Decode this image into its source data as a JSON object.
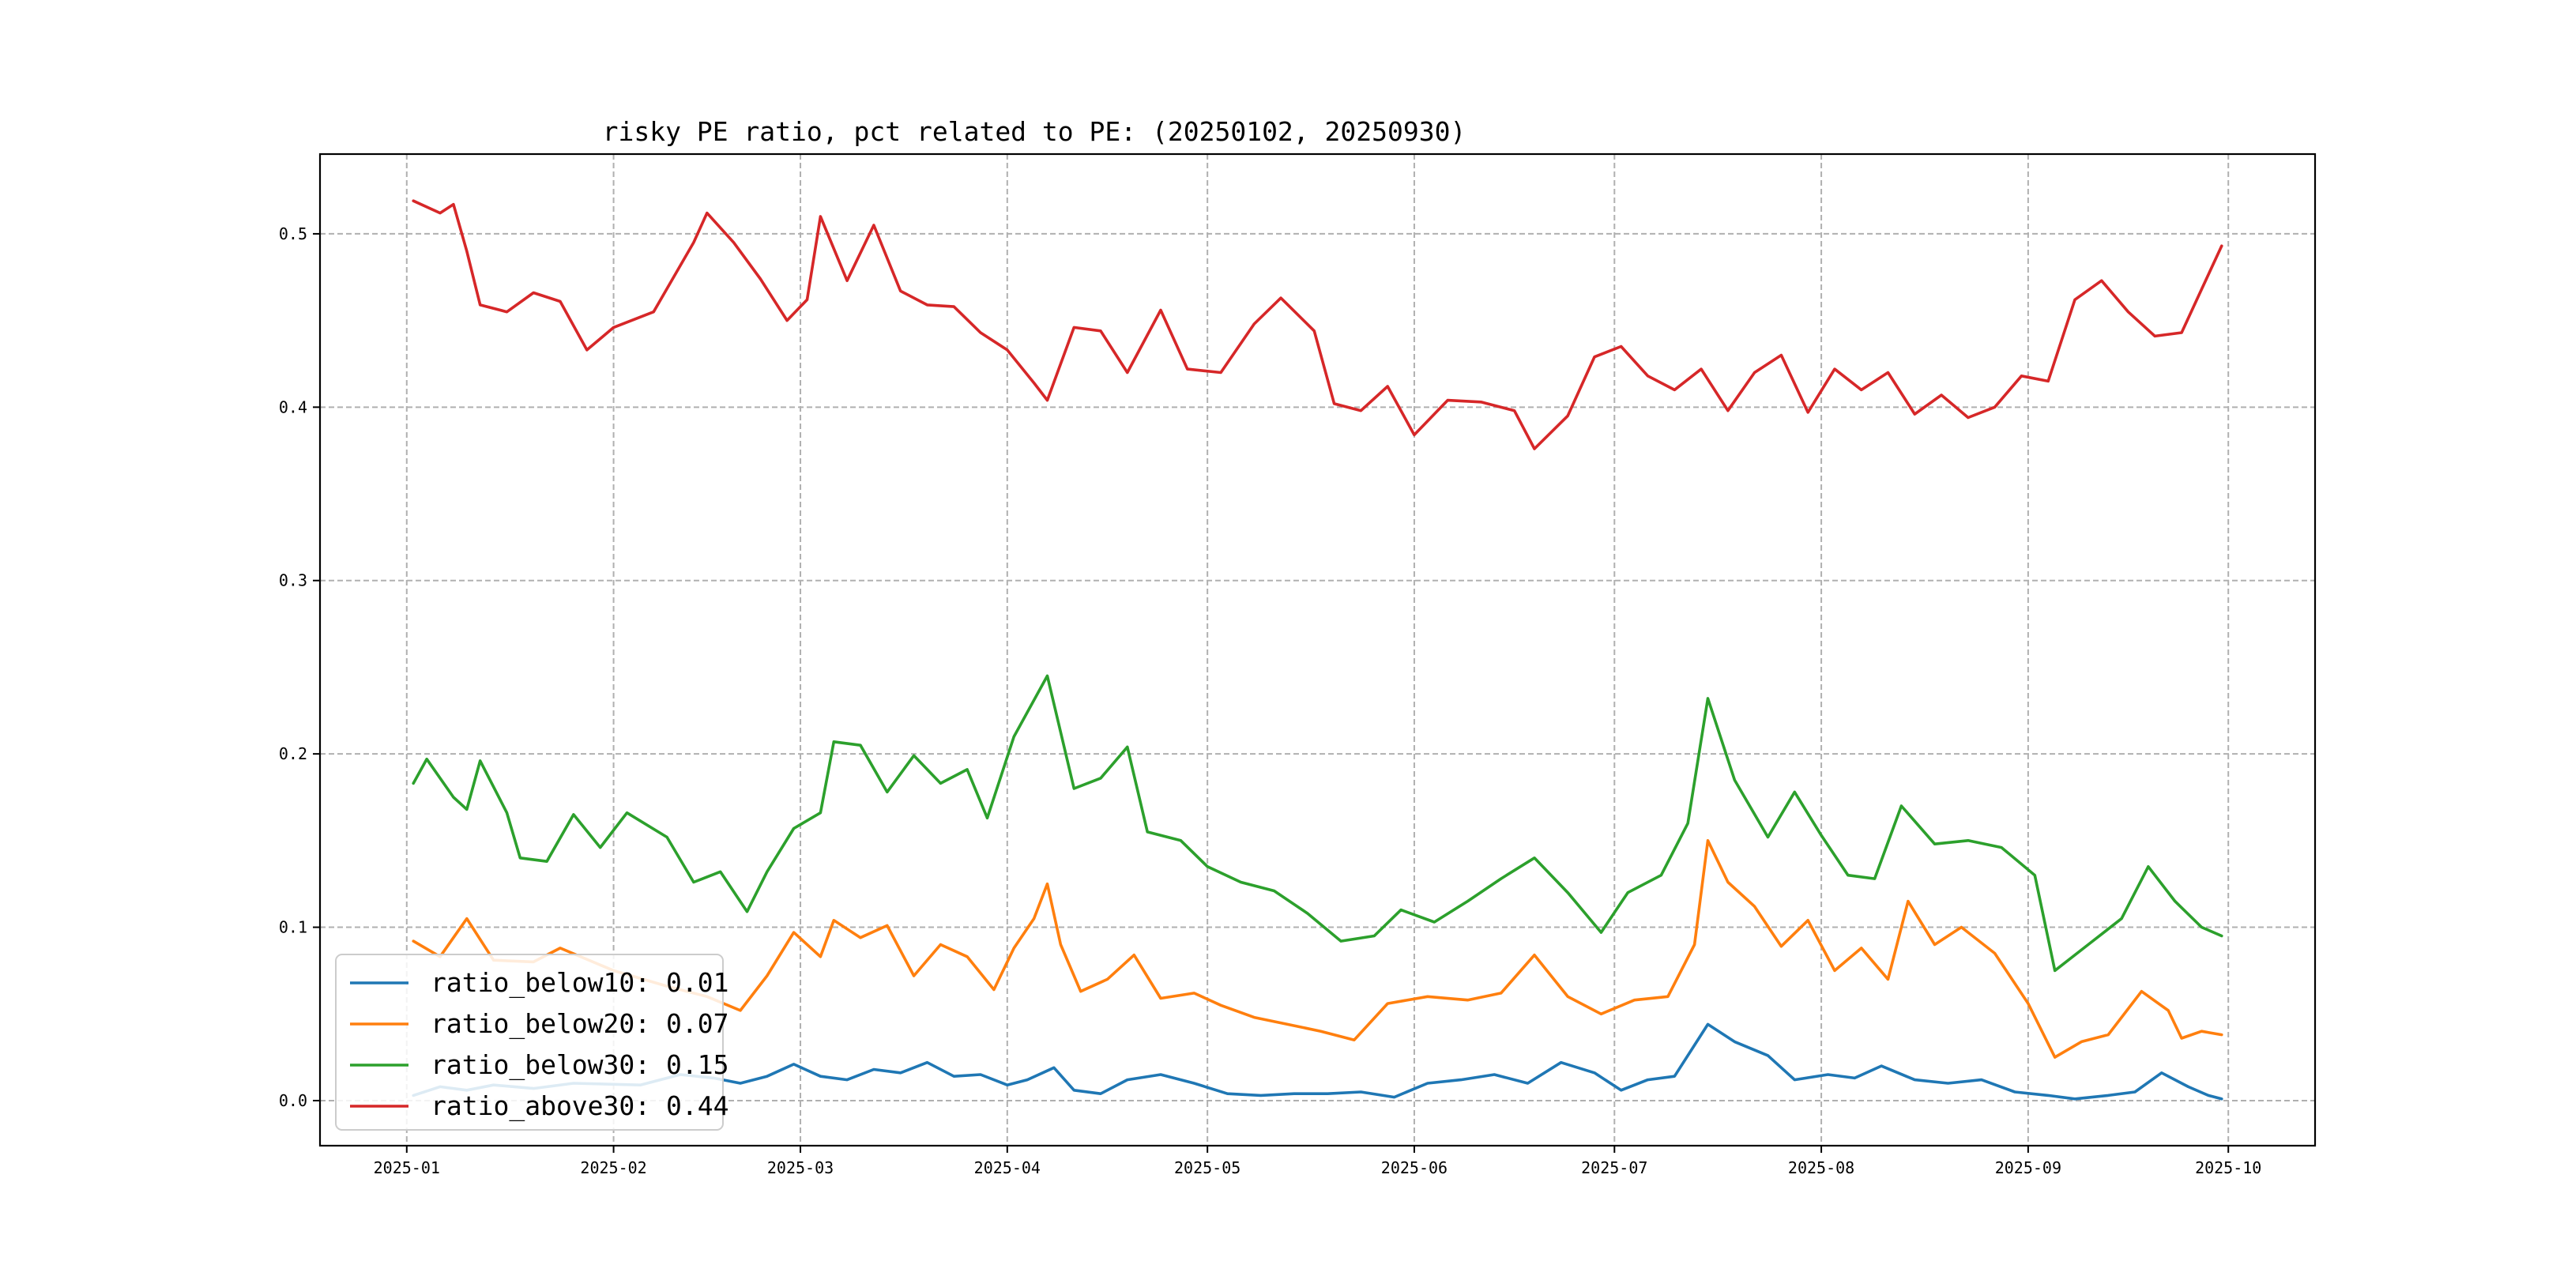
{
  "chart_data": {
    "type": "line",
    "title": "risky PE ratio, pct related to PE: (20250102, 20250930)",
    "xlabel": "",
    "ylabel": "",
    "x_tick_labels": [
      "2025-01",
      "2025-02",
      "2025-03",
      "2025-04",
      "2025-05",
      "2025-06",
      "2025-07",
      "2025-08",
      "2025-09",
      "2025-10"
    ],
    "x_ticks": [
      "2025-01-01",
      "2025-02-01",
      "2025-03-01",
      "2025-04-01",
      "2025-05-01",
      "2025-06-01",
      "2025-07-01",
      "2025-08-01",
      "2025-09-01",
      "2025-10-01"
    ],
    "xlim": [
      "2024-12-19",
      "2025-10-14"
    ],
    "y_tick_labels": [
      "0.0",
      "0.1",
      "0.2",
      "0.3",
      "0.4",
      "0.5"
    ],
    "y_ticks": [
      0.0,
      0.1,
      0.2,
      0.3,
      0.4,
      0.5
    ],
    "ylim": [
      -0.026,
      0.546
    ],
    "grid": true,
    "legend_position": "lower-left",
    "series": [
      {
        "name": "ratio_below10: 0.01",
        "color": "#1f77b4",
        "points": [
          [
            "2025-01-02",
            0.003
          ],
          [
            "2025-01-06",
            0.008
          ],
          [
            "2025-01-10",
            0.006
          ],
          [
            "2025-01-14",
            0.009
          ],
          [
            "2025-01-20",
            0.007
          ],
          [
            "2025-01-26",
            0.01
          ],
          [
            "2025-02-05",
            0.009
          ],
          [
            "2025-02-11",
            0.015
          ],
          [
            "2025-02-16",
            0.013
          ],
          [
            "2025-02-20",
            0.01
          ],
          [
            "2025-02-24",
            0.014
          ],
          [
            "2025-02-28",
            0.021
          ],
          [
            "2025-03-04",
            0.014
          ],
          [
            "2025-03-08",
            0.012
          ],
          [
            "2025-03-12",
            0.018
          ],
          [
            "2025-03-16",
            0.016
          ],
          [
            "2025-03-20",
            0.022
          ],
          [
            "2025-03-24",
            0.014
          ],
          [
            "2025-03-28",
            0.015
          ],
          [
            "2025-04-01",
            0.009
          ],
          [
            "2025-04-04",
            0.012
          ],
          [
            "2025-04-08",
            0.019
          ],
          [
            "2025-04-11",
            0.006
          ],
          [
            "2025-04-15",
            0.004
          ],
          [
            "2025-04-19",
            0.012
          ],
          [
            "2025-04-24",
            0.015
          ],
          [
            "2025-04-29",
            0.01
          ],
          [
            "2025-05-04",
            0.004
          ],
          [
            "2025-05-09",
            0.003
          ],
          [
            "2025-05-14",
            0.004
          ],
          [
            "2025-05-19",
            0.004
          ],
          [
            "2025-05-24",
            0.005
          ],
          [
            "2025-05-29",
            0.002
          ],
          [
            "2025-06-03",
            0.01
          ],
          [
            "2025-06-08",
            0.012
          ],
          [
            "2025-06-13",
            0.015
          ],
          [
            "2025-06-18",
            0.01
          ],
          [
            "2025-06-23",
            0.022
          ],
          [
            "2025-06-28",
            0.016
          ],
          [
            "2025-07-02",
            0.006
          ],
          [
            "2025-07-06",
            0.012
          ],
          [
            "2025-07-10",
            0.014
          ],
          [
            "2025-07-15",
            0.044
          ],
          [
            "2025-07-19",
            0.034
          ],
          [
            "2025-07-24",
            0.026
          ],
          [
            "2025-07-28",
            0.012
          ],
          [
            "2025-08-02",
            0.015
          ],
          [
            "2025-08-06",
            0.013
          ],
          [
            "2025-08-10",
            0.02
          ],
          [
            "2025-08-15",
            0.012
          ],
          [
            "2025-08-20",
            0.01
          ],
          [
            "2025-08-25",
            0.012
          ],
          [
            "2025-08-30",
            0.005
          ],
          [
            "2025-09-04",
            0.003
          ],
          [
            "2025-09-08",
            0.001
          ],
          [
            "2025-09-13",
            0.003
          ],
          [
            "2025-09-17",
            0.005
          ],
          [
            "2025-09-21",
            0.016
          ],
          [
            "2025-09-25",
            0.008
          ],
          [
            "2025-09-28",
            0.003
          ],
          [
            "2025-09-30",
            0.001
          ]
        ]
      },
      {
        "name": "ratio_below20: 0.07",
        "color": "#ff7f0e",
        "points": [
          [
            "2025-01-02",
            0.092
          ],
          [
            "2025-01-06",
            0.083
          ],
          [
            "2025-01-08",
            0.094
          ],
          [
            "2025-01-10",
            0.105
          ],
          [
            "2025-01-14",
            0.081
          ],
          [
            "2025-01-20",
            0.08
          ],
          [
            "2025-01-24",
            0.088
          ],
          [
            "2025-02-01",
            0.075
          ],
          [
            "2025-02-09",
            0.066
          ],
          [
            "2025-02-15",
            0.06
          ],
          [
            "2025-02-20",
            0.052
          ],
          [
            "2025-02-24",
            0.072
          ],
          [
            "2025-02-28",
            0.097
          ],
          [
            "2025-03-04",
            0.083
          ],
          [
            "2025-03-06",
            0.104
          ],
          [
            "2025-03-10",
            0.094
          ],
          [
            "2025-03-14",
            0.101
          ],
          [
            "2025-03-18",
            0.072
          ],
          [
            "2025-03-22",
            0.09
          ],
          [
            "2025-03-26",
            0.083
          ],
          [
            "2025-03-30",
            0.064
          ],
          [
            "2025-04-02",
            0.088
          ],
          [
            "2025-04-05",
            0.105
          ],
          [
            "2025-04-07",
            0.125
          ],
          [
            "2025-04-09",
            0.09
          ],
          [
            "2025-04-12",
            0.063
          ],
          [
            "2025-04-16",
            0.07
          ],
          [
            "2025-04-20",
            0.084
          ],
          [
            "2025-04-24",
            0.059
          ],
          [
            "2025-04-29",
            0.062
          ],
          [
            "2025-05-03",
            0.055
          ],
          [
            "2025-05-08",
            0.048
          ],
          [
            "2025-05-13",
            0.044
          ],
          [
            "2025-05-18",
            0.04
          ],
          [
            "2025-05-23",
            0.035
          ],
          [
            "2025-05-28",
            0.056
          ],
          [
            "2025-06-03",
            0.06
          ],
          [
            "2025-06-09",
            0.058
          ],
          [
            "2025-06-14",
            0.062
          ],
          [
            "2025-06-19",
            0.084
          ],
          [
            "2025-06-24",
            0.06
          ],
          [
            "2025-06-29",
            0.05
          ],
          [
            "2025-07-04",
            0.058
          ],
          [
            "2025-07-09",
            0.06
          ],
          [
            "2025-07-13",
            0.09
          ],
          [
            "2025-07-15",
            0.15
          ],
          [
            "2025-07-18",
            0.126
          ],
          [
            "2025-07-22",
            0.112
          ],
          [
            "2025-07-26",
            0.089
          ],
          [
            "2025-07-30",
            0.104
          ],
          [
            "2025-08-03",
            0.075
          ],
          [
            "2025-08-07",
            0.088
          ],
          [
            "2025-08-11",
            0.07
          ],
          [
            "2025-08-14",
            0.115
          ],
          [
            "2025-08-18",
            0.09
          ],
          [
            "2025-08-22",
            0.1
          ],
          [
            "2025-08-27",
            0.085
          ],
          [
            "2025-09-01",
            0.056
          ],
          [
            "2025-09-05",
            0.025
          ],
          [
            "2025-09-09",
            0.034
          ],
          [
            "2025-09-13",
            0.038
          ],
          [
            "2025-09-18",
            0.063
          ],
          [
            "2025-09-22",
            0.052
          ],
          [
            "2025-09-24",
            0.036
          ],
          [
            "2025-09-27",
            0.04
          ],
          [
            "2025-09-30",
            0.038
          ]
        ]
      },
      {
        "name": "ratio_below30: 0.15",
        "color": "#2ca02c",
        "points": [
          [
            "2025-01-02",
            0.183
          ],
          [
            "2025-01-04",
            0.197
          ],
          [
            "2025-01-08",
            0.175
          ],
          [
            "2025-01-10",
            0.168
          ],
          [
            "2025-01-12",
            0.196
          ],
          [
            "2025-01-16",
            0.166
          ],
          [
            "2025-01-18",
            0.14
          ],
          [
            "2025-01-22",
            0.138
          ],
          [
            "2025-01-26",
            0.165
          ],
          [
            "2025-01-30",
            0.146
          ],
          [
            "2025-02-03",
            0.166
          ],
          [
            "2025-02-09",
            0.152
          ],
          [
            "2025-02-13",
            0.126
          ],
          [
            "2025-02-17",
            0.132
          ],
          [
            "2025-02-21",
            0.109
          ],
          [
            "2025-02-24",
            0.132
          ],
          [
            "2025-02-28",
            0.157
          ],
          [
            "2025-03-04",
            0.166
          ],
          [
            "2025-03-06",
            0.207
          ],
          [
            "2025-03-10",
            0.205
          ],
          [
            "2025-03-14",
            0.178
          ],
          [
            "2025-03-18",
            0.199
          ],
          [
            "2025-03-22",
            0.183
          ],
          [
            "2025-03-26",
            0.191
          ],
          [
            "2025-03-29",
            0.163
          ],
          [
            "2025-04-02",
            0.21
          ],
          [
            "2025-04-07",
            0.245
          ],
          [
            "2025-04-11",
            0.18
          ],
          [
            "2025-04-15",
            0.186
          ],
          [
            "2025-04-19",
            0.204
          ],
          [
            "2025-04-22",
            0.155
          ],
          [
            "2025-04-27",
            0.15
          ],
          [
            "2025-05-01",
            0.135
          ],
          [
            "2025-05-06",
            0.126
          ],
          [
            "2025-05-11",
            0.121
          ],
          [
            "2025-05-16",
            0.108
          ],
          [
            "2025-05-21",
            0.092
          ],
          [
            "2025-05-26",
            0.095
          ],
          [
            "2025-05-30",
            0.11
          ],
          [
            "2025-06-04",
            0.103
          ],
          [
            "2025-06-09",
            0.115
          ],
          [
            "2025-06-14",
            0.128
          ],
          [
            "2025-06-19",
            0.14
          ],
          [
            "2025-06-24",
            0.12
          ],
          [
            "2025-06-29",
            0.097
          ],
          [
            "2025-07-03",
            0.12
          ],
          [
            "2025-07-08",
            0.13
          ],
          [
            "2025-07-12",
            0.16
          ],
          [
            "2025-07-15",
            0.232
          ],
          [
            "2025-07-19",
            0.185
          ],
          [
            "2025-07-24",
            0.152
          ],
          [
            "2025-07-28",
            0.178
          ],
          [
            "2025-08-01",
            0.153
          ],
          [
            "2025-08-05",
            0.13
          ],
          [
            "2025-08-09",
            0.128
          ],
          [
            "2025-08-13",
            0.17
          ],
          [
            "2025-08-18",
            0.148
          ],
          [
            "2025-08-23",
            0.15
          ],
          [
            "2025-08-28",
            0.146
          ],
          [
            "2025-09-02",
            0.13
          ],
          [
            "2025-09-05",
            0.075
          ],
          [
            "2025-09-10",
            0.09
          ],
          [
            "2025-09-15",
            0.105
          ],
          [
            "2025-09-19",
            0.135
          ],
          [
            "2025-09-23",
            0.115
          ],
          [
            "2025-09-27",
            0.1
          ],
          [
            "2025-09-30",
            0.095
          ]
        ]
      },
      {
        "name": "ratio_above30: 0.44",
        "color": "#d62728",
        "points": [
          [
            "2025-01-02",
            0.519
          ],
          [
            "2025-01-06",
            0.512
          ],
          [
            "2025-01-08",
            0.517
          ],
          [
            "2025-01-10",
            0.49
          ],
          [
            "2025-01-12",
            0.459
          ],
          [
            "2025-01-16",
            0.455
          ],
          [
            "2025-01-20",
            0.466
          ],
          [
            "2025-01-24",
            0.461
          ],
          [
            "2025-01-28",
            0.433
          ],
          [
            "2025-02-01",
            0.446
          ],
          [
            "2025-02-07",
            0.455
          ],
          [
            "2025-02-13",
            0.495
          ],
          [
            "2025-02-15",
            0.512
          ],
          [
            "2025-02-19",
            0.495
          ],
          [
            "2025-02-23",
            0.474
          ],
          [
            "2025-02-27",
            0.45
          ],
          [
            "2025-03-02",
            0.462
          ],
          [
            "2025-03-04",
            0.51
          ],
          [
            "2025-03-08",
            0.473
          ],
          [
            "2025-03-12",
            0.505
          ],
          [
            "2025-03-16",
            0.467
          ],
          [
            "2025-03-20",
            0.459
          ],
          [
            "2025-03-24",
            0.458
          ],
          [
            "2025-03-28",
            0.443
          ],
          [
            "2025-04-01",
            0.433
          ],
          [
            "2025-04-05",
            0.414
          ],
          [
            "2025-04-07",
            0.404
          ],
          [
            "2025-04-11",
            0.446
          ],
          [
            "2025-04-15",
            0.444
          ],
          [
            "2025-04-19",
            0.42
          ],
          [
            "2025-04-24",
            0.456
          ],
          [
            "2025-04-28",
            0.422
          ],
          [
            "2025-05-03",
            0.42
          ],
          [
            "2025-05-08",
            0.448
          ],
          [
            "2025-05-12",
            0.463
          ],
          [
            "2025-05-17",
            0.444
          ],
          [
            "2025-05-20",
            0.402
          ],
          [
            "2025-05-24",
            0.398
          ],
          [
            "2025-05-28",
            0.412
          ],
          [
            "2025-06-01",
            0.384
          ],
          [
            "2025-06-06",
            0.404
          ],
          [
            "2025-06-11",
            0.403
          ],
          [
            "2025-06-16",
            0.398
          ],
          [
            "2025-06-19",
            0.376
          ],
          [
            "2025-06-24",
            0.395
          ],
          [
            "2025-06-28",
            0.429
          ],
          [
            "2025-07-02",
            0.435
          ],
          [
            "2025-07-06",
            0.418
          ],
          [
            "2025-07-10",
            0.41
          ],
          [
            "2025-07-14",
            0.422
          ],
          [
            "2025-07-18",
            0.398
          ],
          [
            "2025-07-22",
            0.42
          ],
          [
            "2025-07-26",
            0.43
          ],
          [
            "2025-07-30",
            0.397
          ],
          [
            "2025-08-03",
            0.422
          ],
          [
            "2025-08-07",
            0.41
          ],
          [
            "2025-08-11",
            0.42
          ],
          [
            "2025-08-15",
            0.396
          ],
          [
            "2025-08-19",
            0.407
          ],
          [
            "2025-08-23",
            0.394
          ],
          [
            "2025-08-27",
            0.4
          ],
          [
            "2025-08-31",
            0.418
          ],
          [
            "2025-09-04",
            0.415
          ],
          [
            "2025-09-08",
            0.462
          ],
          [
            "2025-09-12",
            0.473
          ],
          [
            "2025-09-16",
            0.455
          ],
          [
            "2025-09-20",
            0.441
          ],
          [
            "2025-09-24",
            0.443
          ],
          [
            "2025-09-27",
            0.468
          ],
          [
            "2025-09-30",
            0.493
          ]
        ]
      }
    ]
  }
}
